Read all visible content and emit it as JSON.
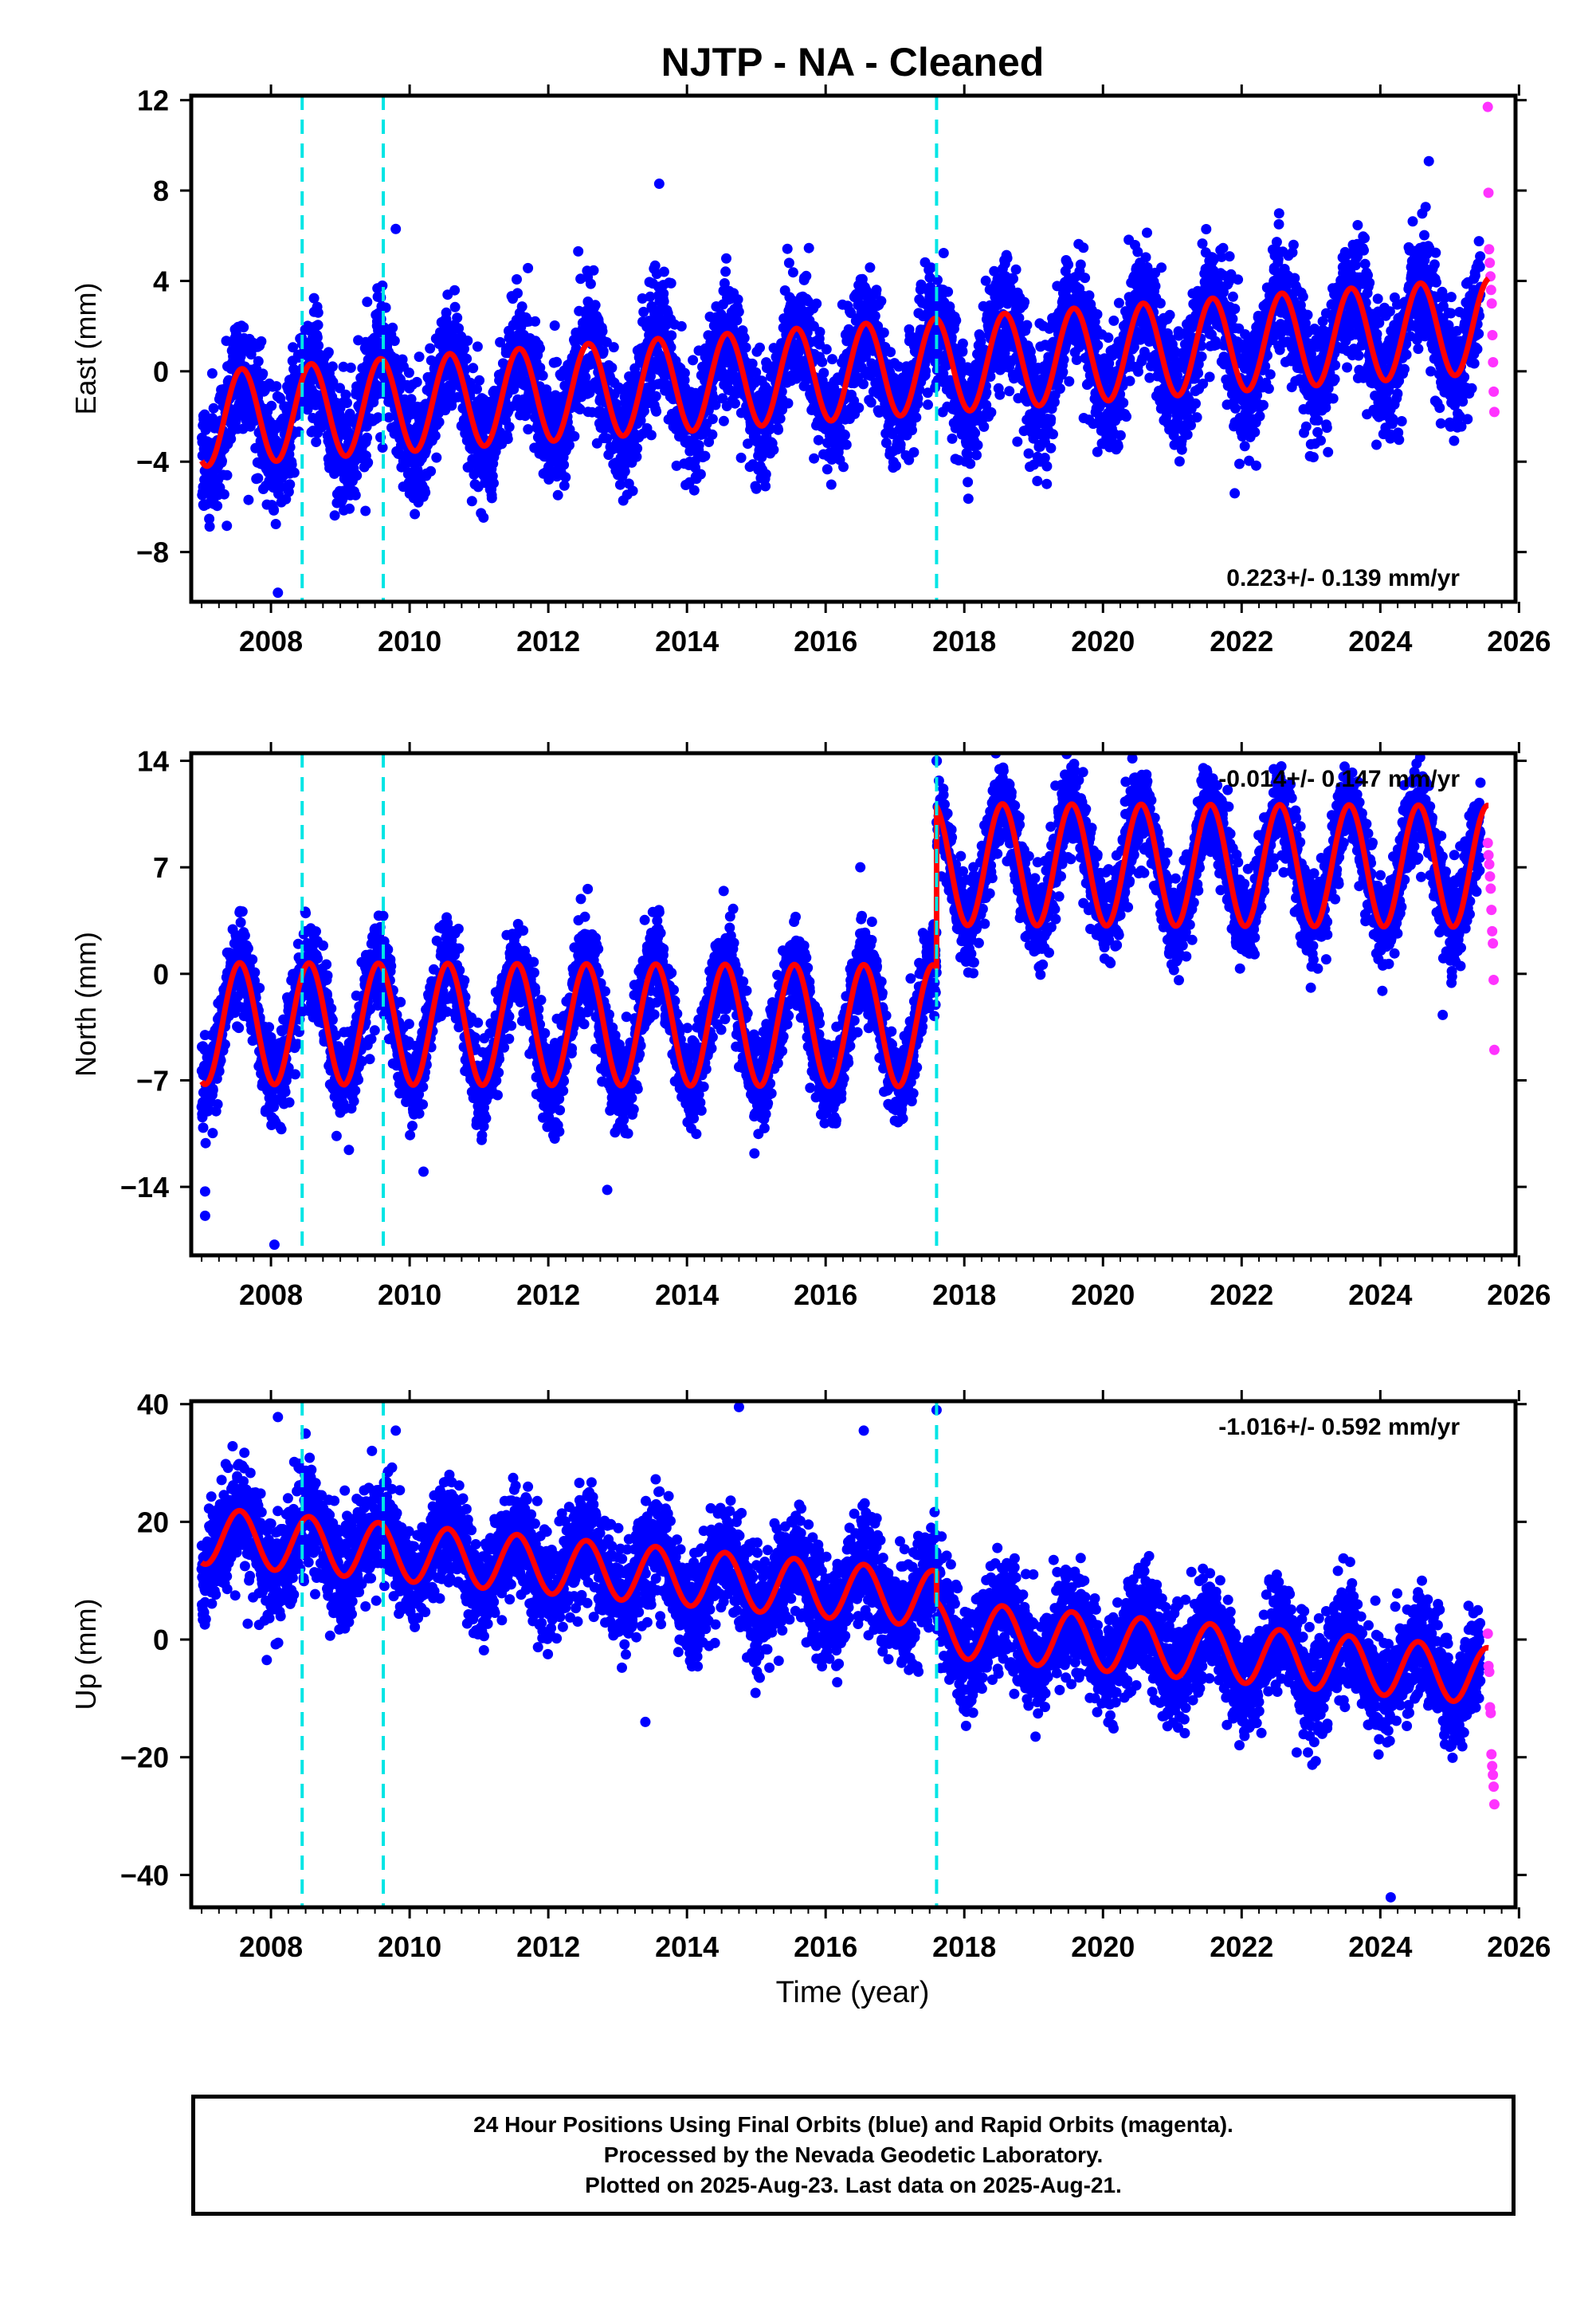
{
  "chart_data": {
    "title": "NJTP  - NA - Cleaned",
    "type": "scatter",
    "xlabel": "Time (year)",
    "xlim": [
      2006.85,
      2025.95
    ],
    "xticks": [
      2008,
      2010,
      2012,
      2014,
      2016,
      2018,
      2020,
      2022,
      2024,
      2026
    ],
    "colors": {
      "final_orbits": "#0000ff",
      "rapid_orbits": "#ff33ff",
      "model": "#ff0000",
      "offsets": "#00e5e5"
    },
    "offset_epochs": [
      2008.45,
      2009.62,
      2017.6
    ],
    "rapid_orbit_span": [
      2025.45,
      2025.64
    ],
    "panels": [
      {
        "component": "east",
        "ylabel": "East (mm)",
        "ylim": [
          -10.2,
          12.2
        ],
        "yticks": [
          -8,
          -4,
          0,
          4,
          8,
          12
        ],
        "velocity_text": "0.223+/- 0.139 mm/yr",
        "velocity_position": "bottom-right",
        "model": {
          "trend": 0.223,
          "annual_amp": 2.1,
          "scatter": 1.3,
          "steps": [
            0,
            0,
            0
          ]
        },
        "rapid_orbit_values": [
          11.7,
          7.9,
          5.4,
          4.8,
          4.2,
          3.6,
          3.0,
          1.6,
          0.4,
          -0.9,
          -1.8
        ],
        "outliers": [
          [
            2008.1,
            -9.8
          ],
          [
            2009.8,
            6.3
          ],
          [
            2013.6,
            8.3
          ],
          [
            2024.7,
            9.3
          ],
          [
            2021.9,
            -5.4
          ],
          [
            2015.0,
            -5.2
          ]
        ]
      },
      {
        "component": "north",
        "ylabel": "North (mm)",
        "ylim": [
          -18.5,
          14.5
        ],
        "yticks": [
          -14,
          -7,
          0,
          7,
          14
        ],
        "velocity_text": "-0.014+/- 0.147 mm/yr",
        "velocity_position": "top-right",
        "model": {
          "trend": -0.014,
          "annual_amp": 4.0,
          "scatter": 1.5,
          "steps": [
            0,
            0,
            9.2
          ]
        },
        "rapid_orbit_values": [
          8.6,
          7.8,
          7.2,
          6.4,
          5.6,
          4.2,
          2.8,
          2.0,
          -0.4,
          -5.0
        ],
        "outliers": [
          [
            2007.05,
            -14.3
          ],
          [
            2007.05,
            -15.9
          ],
          [
            2008.05,
            -17.8
          ],
          [
            2012.85,
            -14.2
          ],
          [
            2010.2,
            -13.0
          ],
          [
            2017.6,
            14.0
          ],
          [
            2016.5,
            7.0
          ],
          [
            2024.9,
            -2.7
          ]
        ]
      },
      {
        "component": "up",
        "ylabel": "Up (mm)",
        "ylim": [
          -45.5,
          40.5
        ],
        "yticks": [
          -40,
          -20,
          0,
          20,
          40
        ],
        "velocity_text": "-1.016+/- 0.592 mm/yr",
        "velocity_position": "top-right",
        "model": {
          "trend": -1.016,
          "annual_amp": 4.8,
          "scatter": 4.5,
          "steps": [
            0,
            0,
            -5.0
          ]
        },
        "rapid_orbit_values": [
          1.0,
          -4.5,
          -5.5,
          -11.5,
          -12.5,
          -19.5,
          -21.5,
          -23.0,
          -25.0,
          -28.0
        ],
        "outliers": [
          [
            2008.1,
            37.8
          ],
          [
            2008.5,
            35.0
          ],
          [
            2009.8,
            35.5
          ],
          [
            2014.75,
            39.5
          ],
          [
            2016.55,
            35.5
          ],
          [
            2017.6,
            39.0
          ],
          [
            2024.15,
            -43.8
          ],
          [
            2024.6,
            10.0
          ],
          [
            2013.4,
            -14.0
          ]
        ]
      }
    ]
  },
  "footer": {
    "line1": "24 Hour Positions Using Final Orbits (blue) and Rapid Orbits (magenta).",
    "line2": "Processed by the Nevada Geodetic Laboratory.",
    "line3": "Plotted on 2025-Aug-23. Last data on 2025-Aug-21."
  }
}
